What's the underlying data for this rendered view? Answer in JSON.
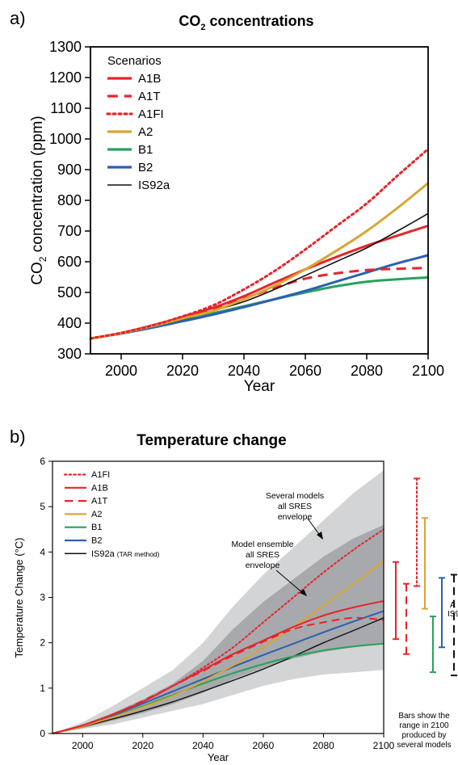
{
  "chart_data": [
    {
      "panel_label": "a)",
      "type": "line",
      "title_main": "CO",
      "title_sub": "2",
      "title_rest": " concentrations",
      "ylabel_main": "CO",
      "ylabel_sub": "2",
      "ylabel_rest": " concentration (ppm)",
      "xlabel": "Year",
      "xlim": [
        1990,
        2100
      ],
      "ylim": [
        300,
        1300
      ],
      "xticks": [
        2000,
        2020,
        2040,
        2060,
        2080,
        2100
      ],
      "yticks": [
        300,
        400,
        500,
        600,
        700,
        800,
        900,
        1000,
        1100,
        1200,
        1300
      ],
      "legend_title": "Scenarios",
      "legend_position": "top-left",
      "series": [
        {
          "name": "A1B",
          "color": "#e8242a",
          "dash": "solid",
          "x": [
            1990,
            2000,
            2010,
            2020,
            2030,
            2040,
            2050,
            2060,
            2070,
            2080,
            2090,
            2100
          ],
          "values": [
            350,
            368,
            392,
            420,
            450,
            488,
            532,
            575,
            615,
            652,
            685,
            717
          ]
        },
        {
          "name": "A1T",
          "color": "#e8242a",
          "dash": "dashed",
          "x": [
            1990,
            2000,
            2010,
            2020,
            2030,
            2040,
            2050,
            2060,
            2070,
            2080,
            2090,
            2100
          ],
          "values": [
            350,
            368,
            390,
            418,
            448,
            480,
            515,
            545,
            562,
            573,
            577,
            580
          ]
        },
        {
          "name": "A1FI",
          "color": "#e8242a",
          "dash": "dotted",
          "x": [
            1990,
            2000,
            2010,
            2020,
            2030,
            2040,
            2050,
            2060,
            2070,
            2080,
            2090,
            2100
          ],
          "values": [
            350,
            368,
            392,
            422,
            458,
            510,
            570,
            640,
            715,
            790,
            880,
            967
          ]
        },
        {
          "name": "A2",
          "color": "#d9a534",
          "dash": "solid",
          "x": [
            1990,
            2000,
            2010,
            2020,
            2030,
            2040,
            2050,
            2060,
            2070,
            2080,
            2090,
            2100
          ],
          "values": [
            350,
            367,
            390,
            415,
            440,
            478,
            522,
            575,
            635,
            700,
            775,
            856
          ]
        },
        {
          "name": "B1",
          "color": "#26a25a",
          "dash": "solid",
          "x": [
            1990,
            2000,
            2010,
            2020,
            2030,
            2040,
            2050,
            2060,
            2070,
            2080,
            2090,
            2100
          ],
          "values": [
            350,
            367,
            388,
            410,
            432,
            455,
            478,
            500,
            520,
            535,
            543,
            549
          ]
        },
        {
          "name": "B2",
          "color": "#2d5fb4",
          "dash": "solid",
          "x": [
            1990,
            2000,
            2010,
            2020,
            2030,
            2040,
            2050,
            2060,
            2070,
            2080,
            2090,
            2100
          ],
          "values": [
            350,
            366,
            385,
            406,
            428,
            452,
            478,
            505,
            535,
            565,
            595,
            621
          ]
        },
        {
          "name": "IS92a",
          "color": "#111111",
          "dash": "solid",
          "x": [
            1990,
            2000,
            2010,
            2020,
            2030,
            2040,
            2050,
            2060,
            2070,
            2080,
            2090,
            2100
          ],
          "values": [
            350,
            367,
            390,
            412,
            440,
            470,
            510,
            555,
            600,
            645,
            700,
            757
          ]
        }
      ]
    },
    {
      "panel_label": "b)",
      "type": "line",
      "title": "Temperature change",
      "ylabel": "Temperature Change (°C)",
      "xlabel": "Year",
      "xlim": [
        1990,
        2100
      ],
      "ylim": [
        0,
        6
      ],
      "xticks": [
        2000,
        2020,
        2040,
        2060,
        2080,
        2100
      ],
      "yticks": [
        0,
        1,
        2,
        3,
        4,
        5,
        6
      ],
      "legend_position": "top-left",
      "legend_suffix_is92a": "(TAR method)",
      "annotations": {
        "several_models": [
          "Several models",
          "all SRES",
          "envelope"
        ],
        "model_ensemble": [
          "Model ensemble",
          "all SRES",
          "envelope"
        ],
        "bars_note": [
          "Bars show the",
          "range in 2100",
          "produced by",
          "several models"
        ],
        "clipped_labels": [
          "A",
          "IS9"
        ]
      },
      "envelope_outer": {
        "x": [
          1990,
          2000,
          2010,
          2020,
          2030,
          2040,
          2050,
          2060,
          2070,
          2080,
          2090,
          2100
        ],
        "upper": [
          0,
          0.25,
          0.6,
          1.0,
          1.4,
          2.0,
          2.8,
          3.5,
          4.1,
          4.7,
          5.3,
          5.8
        ],
        "lower": [
          0,
          0.1,
          0.2,
          0.35,
          0.5,
          0.65,
          0.85,
          1.05,
          1.2,
          1.3,
          1.35,
          1.4
        ]
      },
      "envelope_inner": {
        "x": [
          1990,
          2000,
          2010,
          2020,
          2030,
          2040,
          2050,
          2060,
          2070,
          2080,
          2090,
          2100
        ],
        "upper": [
          0,
          0.2,
          0.45,
          0.75,
          1.1,
          1.6,
          2.3,
          2.9,
          3.4,
          3.9,
          4.3,
          4.6
        ],
        "lower": [
          0,
          0.12,
          0.28,
          0.45,
          0.65,
          0.9,
          1.2,
          1.45,
          1.65,
          1.8,
          1.9,
          2.0
        ]
      },
      "series": [
        {
          "name": "A1FI",
          "color": "#e8242a",
          "dash": "dotted",
          "x": [
            1990,
            2000,
            2010,
            2020,
            2030,
            2040,
            2050,
            2060,
            2070,
            2080,
            2090,
            2100
          ],
          "values": [
            0,
            0.18,
            0.42,
            0.7,
            1.05,
            1.45,
            1.9,
            2.45,
            3.0,
            3.55,
            4.05,
            4.5
          ]
        },
        {
          "name": "A1B",
          "color": "#e8242a",
          "dash": "solid",
          "x": [
            1990,
            2000,
            2010,
            2020,
            2030,
            2040,
            2050,
            2060,
            2070,
            2080,
            2090,
            2100
          ],
          "values": [
            0,
            0.18,
            0.42,
            0.7,
            1.05,
            1.4,
            1.75,
            2.05,
            2.35,
            2.6,
            2.78,
            2.92
          ]
        },
        {
          "name": "A1T",
          "color": "#e8242a",
          "dash": "dashed",
          "x": [
            1990,
            2000,
            2010,
            2020,
            2030,
            2040,
            2050,
            2060,
            2070,
            2080,
            2090,
            2100
          ],
          "values": [
            0,
            0.18,
            0.42,
            0.72,
            1.05,
            1.38,
            1.72,
            2.02,
            2.3,
            2.45,
            2.55,
            2.5
          ]
        },
        {
          "name": "A2",
          "color": "#d9a534",
          "dash": "solid",
          "x": [
            1990,
            2000,
            2010,
            2020,
            2030,
            2040,
            2050,
            2060,
            2070,
            2080,
            2090,
            2100
          ],
          "values": [
            0,
            0.16,
            0.36,
            0.58,
            0.83,
            1.15,
            1.5,
            1.9,
            2.35,
            2.82,
            3.3,
            3.8
          ]
        },
        {
          "name": "B1",
          "color": "#26a25a",
          "dash": "solid",
          "x": [
            1990,
            2000,
            2010,
            2020,
            2030,
            2040,
            2050,
            2060,
            2070,
            2080,
            2090,
            2100
          ],
          "values": [
            0,
            0.16,
            0.37,
            0.6,
            0.85,
            1.1,
            1.33,
            1.53,
            1.7,
            1.83,
            1.92,
            1.98
          ]
        },
        {
          "name": "B2",
          "color": "#2d5fb4",
          "dash": "solid",
          "x": [
            1990,
            2000,
            2010,
            2020,
            2030,
            2040,
            2050,
            2060,
            2070,
            2080,
            2090,
            2100
          ],
          "values": [
            0,
            0.17,
            0.4,
            0.66,
            0.93,
            1.2,
            1.47,
            1.73,
            1.98,
            2.23,
            2.47,
            2.7
          ]
        },
        {
          "name": "IS92a",
          "color": "#111111",
          "dash": "solid",
          "x": [
            1990,
            2000,
            2010,
            2020,
            2030,
            2040,
            2050,
            2060,
            2070,
            2080,
            2090,
            2100
          ],
          "values": [
            0,
            0.15,
            0.32,
            0.5,
            0.7,
            0.93,
            1.17,
            1.42,
            1.7,
            2.0,
            2.27,
            2.55
          ]
        }
      ],
      "range_bars": [
        {
          "name": "A1B",
          "color": "#e8242a",
          "dash": "solid",
          "low": 2.08,
          "high": 3.78
        },
        {
          "name": "A1T",
          "color": "#e8242a",
          "dash": "dashed",
          "low": 1.75,
          "high": 3.3
        },
        {
          "name": "A1FI",
          "color": "#e8242a",
          "dash": "dotted",
          "low": 3.25,
          "high": 5.62
        },
        {
          "name": "A2",
          "color": "#d9a534",
          "dash": "solid",
          "low": 2.75,
          "high": 4.75
        },
        {
          "name": "B1",
          "color": "#26a25a",
          "dash": "solid",
          "low": 1.35,
          "high": 2.58
        },
        {
          "name": "B2",
          "color": "#2d5fb4",
          "dash": "solid",
          "low": 1.9,
          "high": 3.43
        },
        {
          "name": "IS92a",
          "color": "#111111",
          "dash": "dashed",
          "low": 1.28,
          "high": 3.5
        }
      ]
    }
  ]
}
